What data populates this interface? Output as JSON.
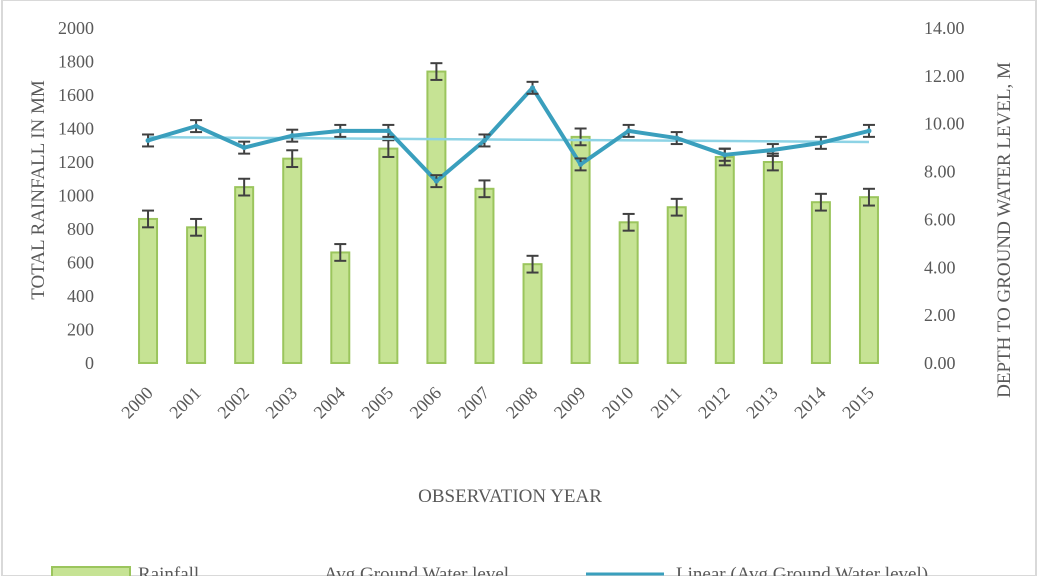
{
  "chart_data": {
    "type": "bar",
    "categories": [
      "2000",
      "2001",
      "2002",
      "2003",
      "2004",
      "2005",
      "2006",
      "2007",
      "2008",
      "2009",
      "2010",
      "2011",
      "2012",
      "2013",
      "2014",
      "2015"
    ],
    "series": [
      {
        "name": "Rainfall",
        "type": "bar",
        "axis": "left",
        "values": [
          860,
          810,
          1050,
          1220,
          660,
          1280,
          1740,
          1040,
          590,
          1350,
          840,
          930,
          1230,
          1200,
          960,
          990
        ],
        "error": 50
      },
      {
        "name": "Avg Ground Water level",
        "type": "line",
        "axis": "right",
        "values": [
          9.3,
          9.9,
          9.0,
          9.5,
          9.7,
          9.7,
          7.6,
          9.3,
          11.5,
          8.3,
          9.7,
          9.4,
          8.7,
          8.9,
          9.2,
          9.7
        ],
        "error": 0.25
      },
      {
        "name": "Linear (Avg Ground Water level)",
        "type": "trendline",
        "axis": "right"
      }
    ],
    "xlabel": "OBSERVATION YEAR",
    "ylabel": "TOTAL RAINFALL IN MM",
    "y2label": "DEPTH TO GROUND WATER LEVEL, M",
    "ylim": [
      0,
      2000
    ],
    "y2lim": [
      0,
      14
    ],
    "yticks": [
      "0",
      "200",
      "400",
      "600",
      "800",
      "1000",
      "1200",
      "1400",
      "1600",
      "1800",
      "2000"
    ],
    "y2ticks": [
      "0.00",
      "2.00",
      "4.00",
      "6.00",
      "8.00",
      "10.00",
      "12.00",
      "14.00"
    ],
    "legend_position": "bottom",
    "colors": {
      "bar_fill": "#c6e394",
      "bar_stroke": "#9bc55d",
      "line": "#3a9fbd",
      "trend": "#8dd3e5",
      "error": "#404040",
      "text": "#595959"
    }
  }
}
